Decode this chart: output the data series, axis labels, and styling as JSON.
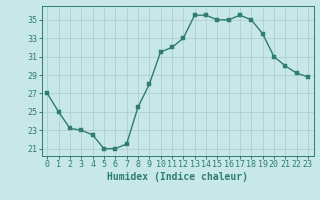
{
  "x": [
    0,
    1,
    2,
    3,
    4,
    5,
    6,
    7,
    8,
    9,
    10,
    11,
    12,
    13,
    14,
    15,
    16,
    17,
    18,
    19,
    20,
    21,
    22,
    23
  ],
  "y": [
    27,
    25,
    23.2,
    23,
    22.5,
    21,
    21,
    21.5,
    25.5,
    28,
    31.5,
    32,
    33,
    35.5,
    35.5,
    35,
    35,
    35.5,
    35,
    33.5,
    31,
    30,
    29.2,
    28.8
  ],
  "line_color": "#2e7d6e",
  "marker_color": "#2e7d6e",
  "bg_color": "#c8e8e8",
  "grid_color": "#b0d0d0",
  "xlabel": "Humidex (Indice chaleur)",
  "xlim": [
    -0.5,
    23.5
  ],
  "ylim": [
    20.2,
    36.5
  ],
  "yticks": [
    21,
    23,
    25,
    27,
    29,
    31,
    33,
    35
  ],
  "xticks": [
    0,
    1,
    2,
    3,
    4,
    5,
    6,
    7,
    8,
    9,
    10,
    11,
    12,
    13,
    14,
    15,
    16,
    17,
    18,
    19,
    20,
    21,
    22,
    23
  ],
  "xtick_labels": [
    "0",
    "1",
    "2",
    "3",
    "4",
    "5",
    "6",
    "7",
    "8",
    "9",
    "10",
    "11",
    "12",
    "13",
    "14",
    "15",
    "16",
    "17",
    "18",
    "19",
    "20",
    "21",
    "22",
    "23"
  ],
  "axis_color": "#2e7d6e",
  "tick_color": "#2e7d6e",
  "label_color": "#2e7d6e",
  "tick_fontsize": 6,
  "xlabel_fontsize": 7,
  "marker_size": 3,
  "linewidth": 1.0
}
